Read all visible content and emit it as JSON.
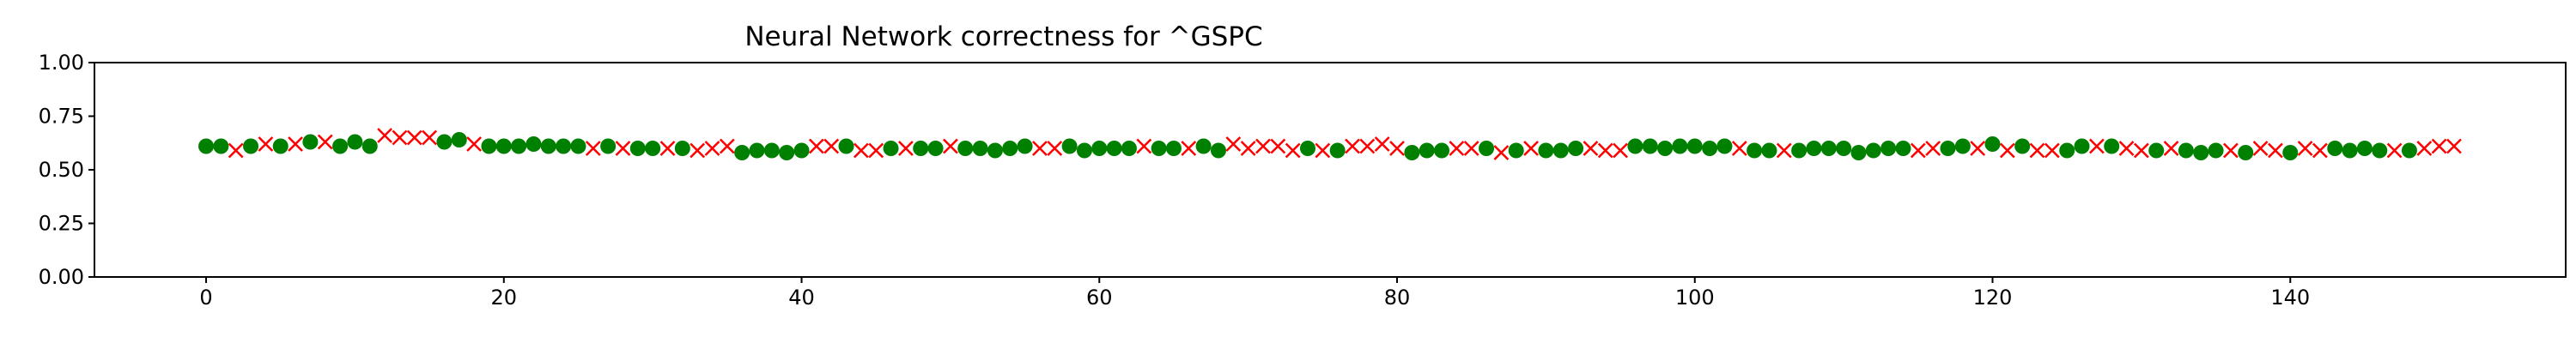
{
  "chart_data": {
    "type": "scatter",
    "title": "Neural Network correctness for ^GSPC",
    "xlabel": "",
    "ylabel": "",
    "xlim": [
      -7.5,
      158.5
    ],
    "ylim": [
      0,
      1
    ],
    "xticks": [
      0,
      20,
      40,
      60,
      80,
      100,
      120,
      140
    ],
    "xtick_labels": [
      "0",
      "20",
      "40",
      "60",
      "80",
      "100",
      "120",
      "140"
    ],
    "yticks": [
      0,
      0.25,
      0.5,
      0.75,
      1.0
    ],
    "ytick_labels": [
      "0.00",
      "0.25",
      "0.50",
      "0.75",
      "1.00"
    ],
    "grid": false,
    "legend": "none",
    "marker_colors": {
      "correct": "#008000",
      "incorrect": "#ff0000"
    },
    "series": [
      {
        "marker": "circle",
        "color": "#008000",
        "points": [
          [
            0,
            0.61
          ],
          [
            1,
            0.61
          ],
          [
            3,
            0.61
          ],
          [
            5,
            0.61
          ],
          [
            7,
            0.63
          ],
          [
            9,
            0.61
          ],
          [
            10,
            0.63
          ],
          [
            11,
            0.61
          ],
          [
            16,
            0.63
          ],
          [
            17,
            0.64
          ],
          [
            19,
            0.61
          ],
          [
            20,
            0.61
          ],
          [
            21,
            0.61
          ],
          [
            22,
            0.62
          ],
          [
            23,
            0.61
          ],
          [
            24,
            0.61
          ],
          [
            25,
            0.61
          ],
          [
            27,
            0.61
          ],
          [
            29,
            0.6
          ],
          [
            30,
            0.6
          ],
          [
            32,
            0.6
          ],
          [
            36,
            0.58
          ],
          [
            37,
            0.59
          ],
          [
            38,
            0.59
          ],
          [
            39,
            0.58
          ],
          [
            40,
            0.59
          ],
          [
            43,
            0.61
          ],
          [
            46,
            0.6
          ],
          [
            48,
            0.6
          ],
          [
            49,
            0.6
          ],
          [
            51,
            0.6
          ],
          [
            52,
            0.6
          ],
          [
            53,
            0.59
          ],
          [
            54,
            0.6
          ],
          [
            55,
            0.61
          ],
          [
            58,
            0.61
          ],
          [
            59,
            0.59
          ],
          [
            60,
            0.6
          ],
          [
            61,
            0.6
          ],
          [
            62,
            0.6
          ],
          [
            64,
            0.6
          ],
          [
            65,
            0.6
          ],
          [
            67,
            0.61
          ],
          [
            68,
            0.59
          ],
          [
            74,
            0.6
          ],
          [
            76,
            0.59
          ],
          [
            81,
            0.58
          ],
          [
            82,
            0.59
          ],
          [
            83,
            0.59
          ],
          [
            86,
            0.6
          ],
          [
            88,
            0.59
          ],
          [
            90,
            0.59
          ],
          [
            91,
            0.59
          ],
          [
            92,
            0.6
          ],
          [
            96,
            0.61
          ],
          [
            97,
            0.61
          ],
          [
            98,
            0.6
          ],
          [
            99,
            0.61
          ],
          [
            100,
            0.61
          ],
          [
            101,
            0.6
          ],
          [
            102,
            0.61
          ],
          [
            104,
            0.59
          ],
          [
            105,
            0.59
          ],
          [
            107,
            0.59
          ],
          [
            108,
            0.6
          ],
          [
            109,
            0.6
          ],
          [
            110,
            0.6
          ],
          [
            111,
            0.58
          ],
          [
            112,
            0.59
          ],
          [
            113,
            0.6
          ],
          [
            114,
            0.6
          ],
          [
            117,
            0.6
          ],
          [
            118,
            0.61
          ],
          [
            120,
            0.62
          ],
          [
            122,
            0.61
          ],
          [
            125,
            0.59
          ],
          [
            126,
            0.61
          ],
          [
            128,
            0.61
          ],
          [
            131,
            0.59
          ],
          [
            133,
            0.59
          ],
          [
            134,
            0.58
          ],
          [
            135,
            0.59
          ],
          [
            137,
            0.58
          ],
          [
            140,
            0.58
          ],
          [
            143,
            0.6
          ],
          [
            144,
            0.59
          ],
          [
            145,
            0.6
          ],
          [
            146,
            0.59
          ],
          [
            148,
            0.59
          ]
        ]
      },
      {
        "marker": "x",
        "color": "#ff0000",
        "points": [
          [
            2,
            0.59
          ],
          [
            4,
            0.62
          ],
          [
            6,
            0.62
          ],
          [
            8,
            0.63
          ],
          [
            12,
            0.66
          ],
          [
            13,
            0.65
          ],
          [
            14,
            0.65
          ],
          [
            15,
            0.65
          ],
          [
            18,
            0.62
          ],
          [
            26,
            0.6
          ],
          [
            28,
            0.6
          ],
          [
            31,
            0.6
          ],
          [
            33,
            0.59
          ],
          [
            34,
            0.6
          ],
          [
            35,
            0.61
          ],
          [
            41,
            0.61
          ],
          [
            42,
            0.61
          ],
          [
            44,
            0.59
          ],
          [
            45,
            0.59
          ],
          [
            47,
            0.6
          ],
          [
            50,
            0.61
          ],
          [
            56,
            0.6
          ],
          [
            57,
            0.6
          ],
          [
            63,
            0.61
          ],
          [
            66,
            0.6
          ],
          [
            69,
            0.62
          ],
          [
            70,
            0.6
          ],
          [
            71,
            0.61
          ],
          [
            72,
            0.61
          ],
          [
            73,
            0.59
          ],
          [
            75,
            0.59
          ],
          [
            77,
            0.61
          ],
          [
            78,
            0.61
          ],
          [
            79,
            0.62
          ],
          [
            80,
            0.6
          ],
          [
            84,
            0.6
          ],
          [
            85,
            0.6
          ],
          [
            87,
            0.58
          ],
          [
            89,
            0.6
          ],
          [
            93,
            0.6
          ],
          [
            94,
            0.59
          ],
          [
            95,
            0.59
          ],
          [
            103,
            0.6
          ],
          [
            106,
            0.59
          ],
          [
            115,
            0.59
          ],
          [
            116,
            0.6
          ],
          [
            119,
            0.6
          ],
          [
            121,
            0.59
          ],
          [
            123,
            0.59
          ],
          [
            124,
            0.59
          ],
          [
            127,
            0.61
          ],
          [
            129,
            0.6
          ],
          [
            130,
            0.59
          ],
          [
            132,
            0.6
          ],
          [
            136,
            0.59
          ],
          [
            138,
            0.6
          ],
          [
            139,
            0.59
          ],
          [
            141,
            0.6
          ],
          [
            142,
            0.59
          ],
          [
            147,
            0.59
          ],
          [
            149,
            0.6
          ],
          [
            150,
            0.61
          ],
          [
            151,
            0.61
          ]
        ]
      }
    ]
  }
}
